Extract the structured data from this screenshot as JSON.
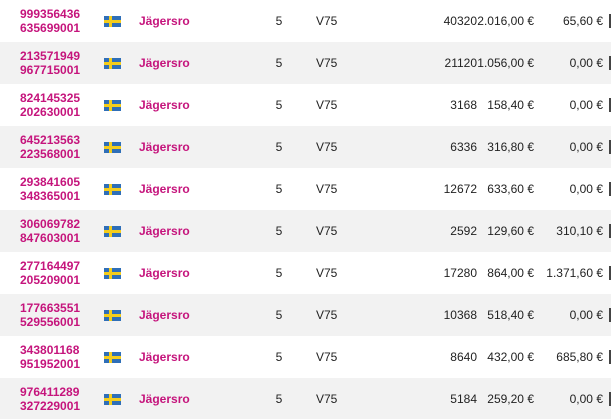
{
  "table": {
    "rows": [
      {
        "id_line1": "999356436",
        "id_line2": "635699001",
        "track": "Jägersro",
        "race": "5",
        "game": "V75",
        "num_rows": "40320",
        "stake": "2.016,00 €",
        "winnings": "65,60 €"
      },
      {
        "id_line1": "213571949",
        "id_line2": "967715001",
        "track": "Jägersro",
        "race": "5",
        "game": "V75",
        "num_rows": "21120",
        "stake": "1.056,00 €",
        "winnings": "0,00 €"
      },
      {
        "id_line1": "824145325",
        "id_line2": "202630001",
        "track": "Jägersro",
        "race": "5",
        "game": "V75",
        "num_rows": "3168",
        "stake": "158,40 €",
        "winnings": "0,00 €"
      },
      {
        "id_line1": "645213563",
        "id_line2": "223568001",
        "track": "Jägersro",
        "race": "5",
        "game": "V75",
        "num_rows": "6336",
        "stake": "316,80 €",
        "winnings": "0,00 €"
      },
      {
        "id_line1": "293841605",
        "id_line2": "348365001",
        "track": "Jägersro",
        "race": "5",
        "game": "V75",
        "num_rows": "12672",
        "stake": "633,60 €",
        "winnings": "0,00 €"
      },
      {
        "id_line1": "306069782",
        "id_line2": "847603001",
        "track": "Jägersro",
        "race": "5",
        "game": "V75",
        "num_rows": "2592",
        "stake": "129,60 €",
        "winnings": "310,10 €"
      },
      {
        "id_line1": "277164497",
        "id_line2": "205209001",
        "track": "Jägersro",
        "race": "5",
        "game": "V75",
        "num_rows": "17280",
        "stake": "864,00 €",
        "winnings": "1.371,60 €"
      },
      {
        "id_line1": "177663551",
        "id_line2": "529556001",
        "track": "Jägersro",
        "race": "5",
        "game": "V75",
        "num_rows": "10368",
        "stake": "518,40 €",
        "winnings": "0,00 €"
      },
      {
        "id_line1": "343801168",
        "id_line2": "951952001",
        "track": "Jägersro",
        "race": "5",
        "game": "V75",
        "num_rows": "8640",
        "stake": "432,00 €",
        "winnings": "685,80 €"
      },
      {
        "id_line1": "976411289",
        "id_line2": "327229001",
        "track": "Jägersro",
        "race": "5",
        "game": "V75",
        "num_rows": "5184",
        "stake": "259,20 €",
        "winnings": "0,00 €"
      }
    ],
    "flag_icon": "sweden-flag-icon",
    "colors": {
      "link": "#c5147c",
      "alt_row": "#f2f2f2",
      "flag_blue": "#2f6fb8",
      "flag_yellow": "#f4cd1c"
    }
  }
}
